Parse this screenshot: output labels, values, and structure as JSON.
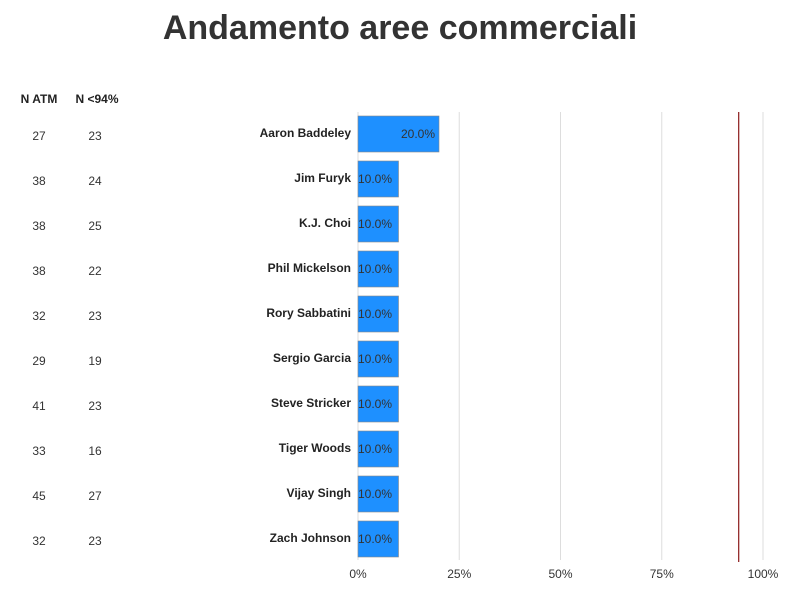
{
  "chart_data": {
    "type": "hbar",
    "title": "Andamento aree commerciali",
    "categories": [
      "Aaron Baddeley",
      "Jim Furyk",
      "K.J. Choi",
      "Phil Mickelson",
      "Rory Sabbatini",
      "Sergio Garcia",
      "Steve Stricker",
      "Tiger Woods",
      "Vijay Singh",
      "Zach Johnson"
    ],
    "values": [
      20,
      10,
      10,
      10,
      10,
      10,
      10,
      10,
      10,
      10
    ],
    "value_labels": [
      "20.0%",
      "10.0%",
      "10.0%",
      "10.0%",
      "10.0%",
      "10.0%",
      "10.0%",
      "10.0%",
      "10.0%",
      "10.0%"
    ],
    "color": "#1e90ff",
    "xlim": [
      0,
      100
    ],
    "xticks": [
      {
        "value": 0,
        "label": "0%"
      },
      {
        "value": 25,
        "label": "25%"
      },
      {
        "value": 50,
        "label": "50%"
      },
      {
        "value": 75,
        "label": "75%"
      },
      {
        "value": 100,
        "label": "100%"
      }
    ],
    "grid": true,
    "reference_line": {
      "value": 94,
      "color": "#8b1a1a"
    },
    "table_columns": [
      {
        "name": "N ATM",
        "values": [
          27,
          38,
          38,
          38,
          32,
          29,
          41,
          33,
          45,
          32
        ]
      },
      {
        "name": "N <94%",
        "values": [
          23,
          24,
          25,
          22,
          23,
          19,
          23,
          16,
          27,
          23
        ]
      }
    ]
  }
}
